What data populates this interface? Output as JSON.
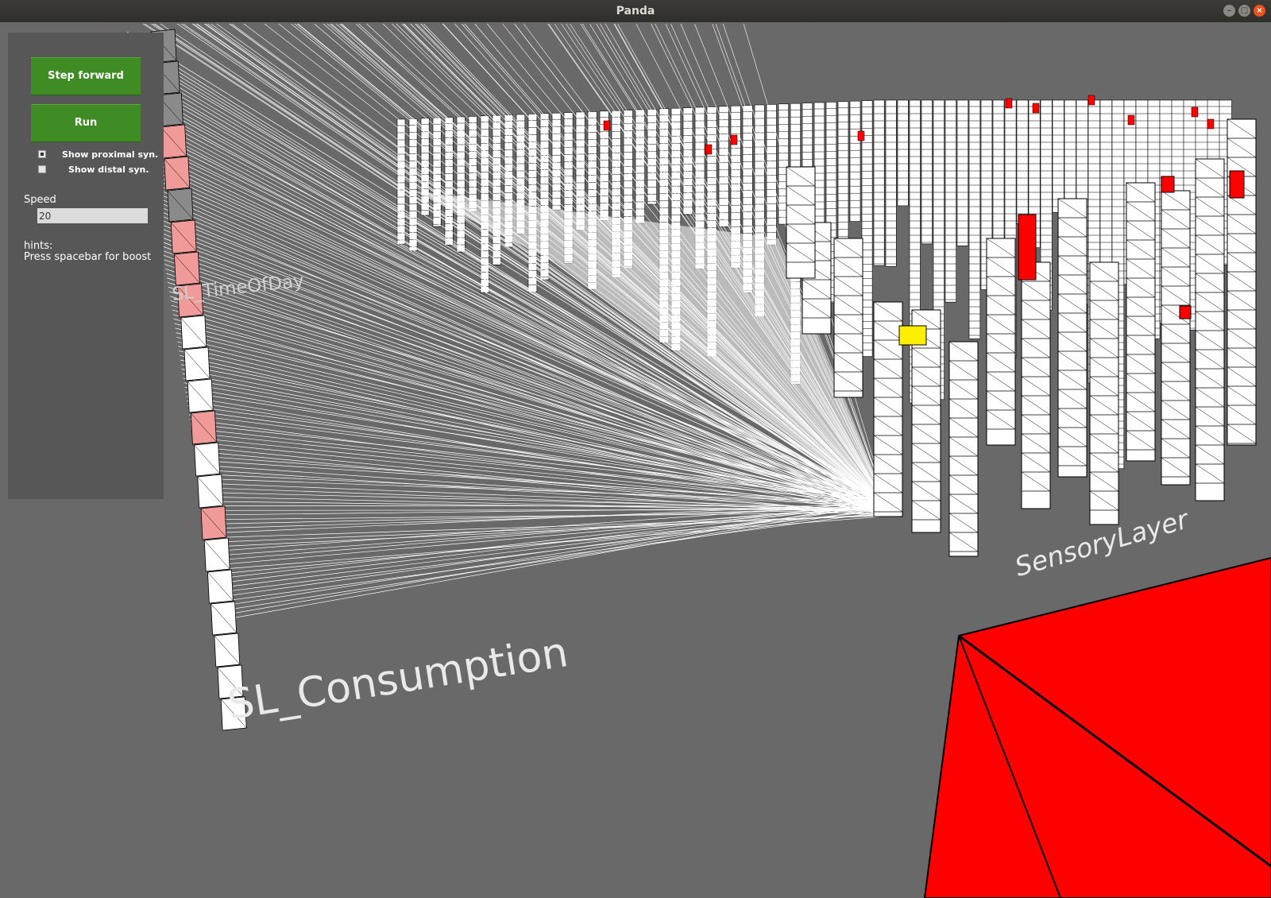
{
  "window": {
    "title": "Panda",
    "buttons": {
      "minimize": "–",
      "maximize": "□",
      "close": "×"
    }
  },
  "panel": {
    "step_forward_label": "Step forward",
    "run_label": "Run",
    "show_proximal_label": "Show proximal syn.",
    "show_proximal_checked": true,
    "show_distal_label": "Show distal syn.",
    "show_distal_checked": false,
    "speed_label": "Speed",
    "speed_value": "20",
    "hints_title": "hints:",
    "hints_text": "Press spacebar for boost"
  },
  "scene": {
    "labels": {
      "consumption": "SL_Consumption",
      "sensory": "SensoryLayer",
      "timeofday": "SL_TimeOfDay"
    },
    "colors": {
      "background": "#696969",
      "column_fill": "#ffffff",
      "active_cell": "#ff0000",
      "predictive_cell": "#f09a9a",
      "winner_cell": "#ffee00",
      "synapse_line": "#ffffff"
    }
  }
}
